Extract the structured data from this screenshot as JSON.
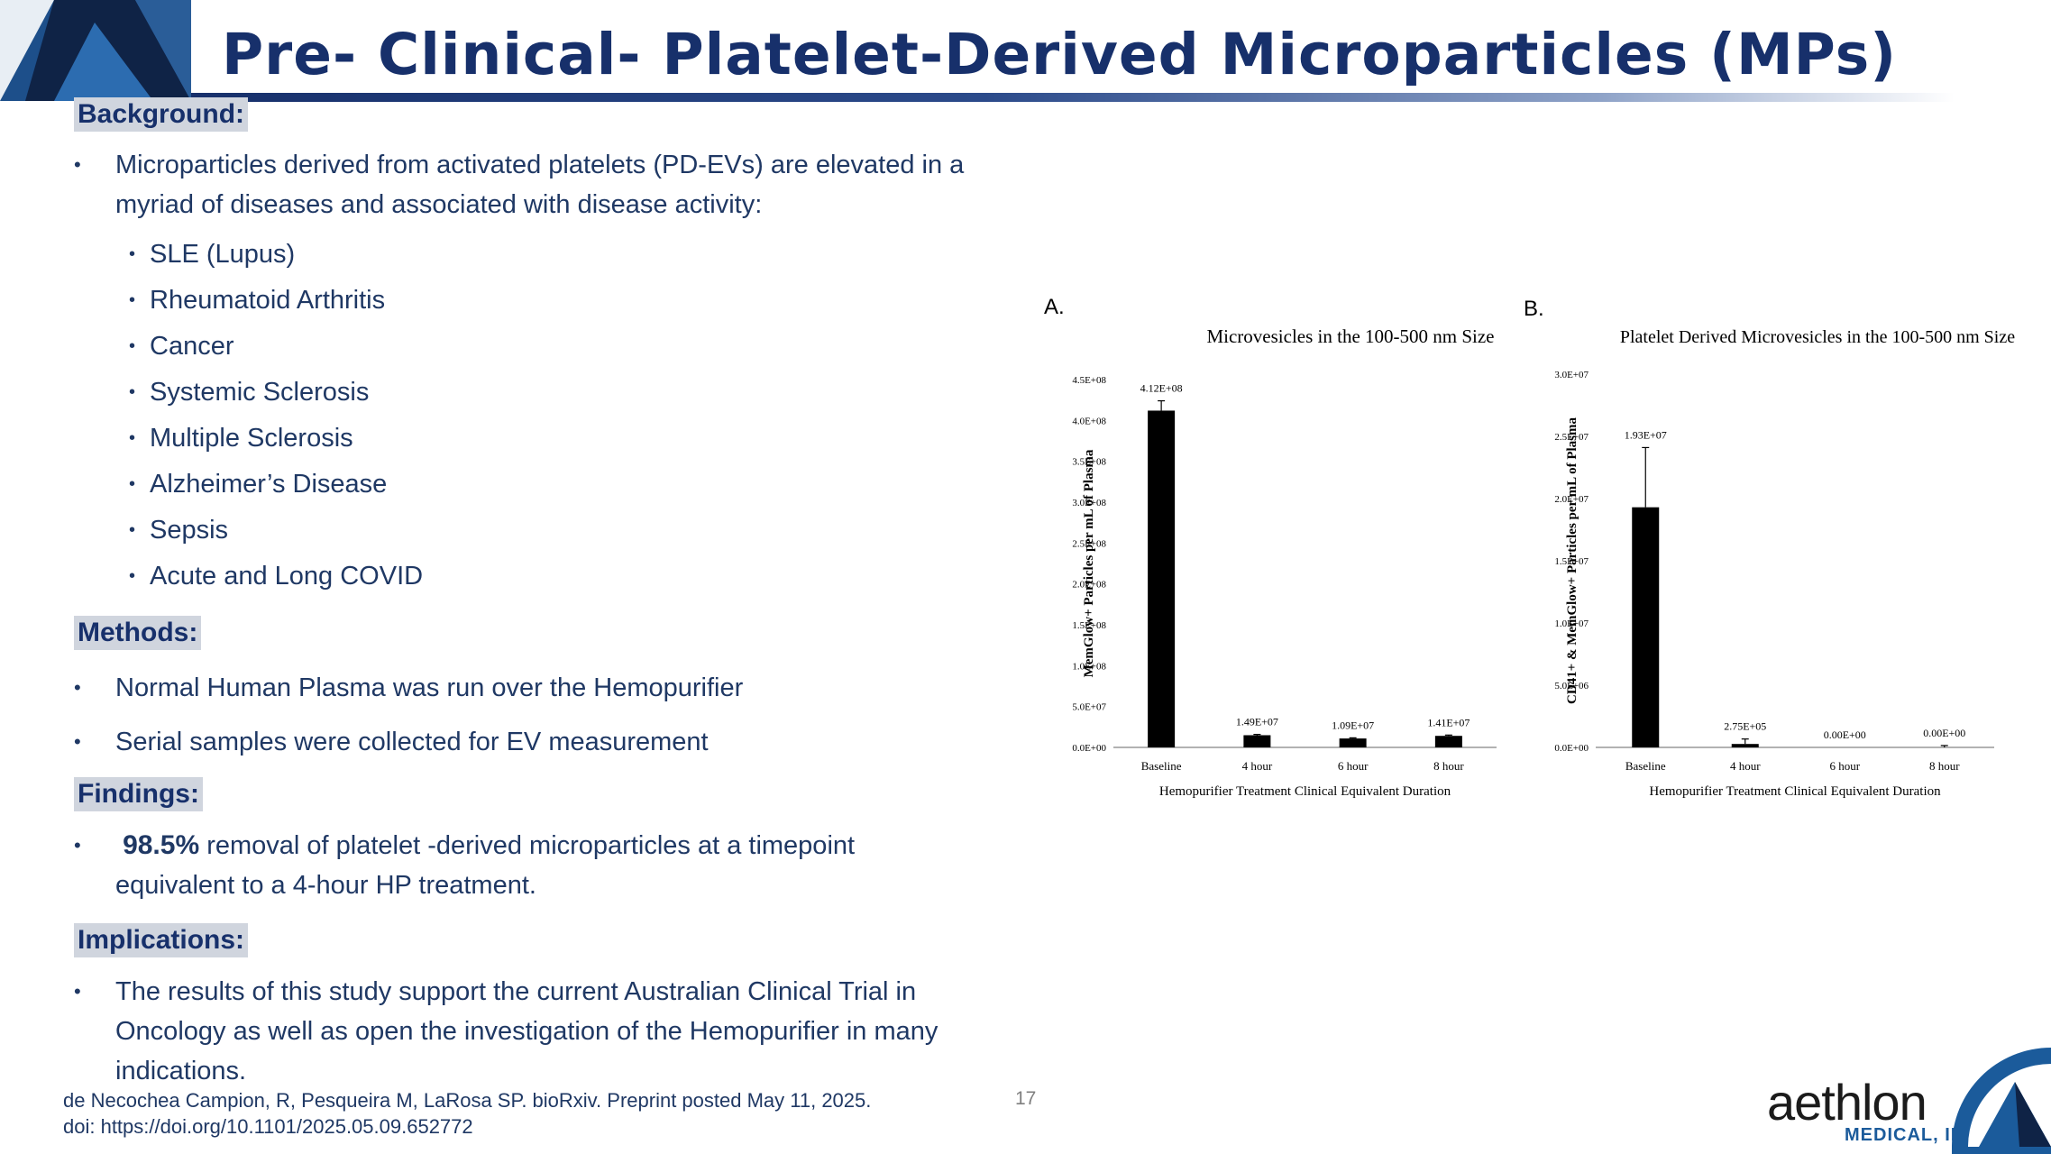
{
  "slide": {
    "title": "Pre- Clinical- Platelet-Derived Microparticles (MPs)",
    "page_number": "17"
  },
  "background": {
    "heading": "Background:",
    "bullet": "Microparticles derived from activated platelets (PD-EVs) are elevated in a myriad of diseases and associated with disease activity:",
    "diseases": [
      "SLE (Lupus)",
      "Rheumatoid Arthritis",
      "Cancer",
      "Systemic Sclerosis",
      "Multiple Sclerosis",
      "Alzheimer’s Disease",
      "Sepsis",
      "Acute and Long COVID"
    ]
  },
  "methods": {
    "heading": "Methods:",
    "bullets": [
      "Normal Human Plasma was run over the Hemopurifier",
      "Serial samples were collected for EV measurement"
    ]
  },
  "findings": {
    "heading": "Findings:",
    "highlight": "98.5%",
    "text": " removal of platelet -derived microparticles at a timepoint equivalent to a 4-hour HP treatment."
  },
  "implications": {
    "heading": "Implications:",
    "bullet": "The results of this study support the current Australian Clinical Trial in Oncology as well as open the investigation of the Hemopurifier in many indications."
  },
  "citation": {
    "line1": "de Necochea Campion, R, Pesqueira M, LaRosa SP. bioRxiv. Preprint posted May 11, 2025.",
    "line2": "doi:    https://doi.org/10.1101/2025.05.09.652772"
  },
  "brand": {
    "name": "aethlon",
    "subtitle": "MEDICAL, INC.",
    "primary_color": "#17306b",
    "accent_color": "#1b5b9b"
  },
  "chart_data": [
    {
      "panel_label": "A.",
      "type": "bar",
      "title": "Microvesicles in the 100-500 nm Size",
      "xlabel": "Hemopurifier Treatment Clinical Equivalent Duration",
      "ylabel": "MemGlow+ Particles per mL of Plasma",
      "categories": [
        "Baseline",
        "4 hour",
        "6 hour",
        "8 hour"
      ],
      "values": [
        412000000,
        14900000,
        10900000,
        14100000
      ],
      "value_labels": [
        "4.12E+08",
        "1.49E+07",
        "1.09E+07",
        "1.41E+07"
      ],
      "errors": [
        12000000,
        1000000,
        800000,
        1000000
      ],
      "ylim": [
        0,
        450000000
      ],
      "yticks": [
        0,
        50000000,
        100000000,
        150000000,
        200000000,
        250000000,
        300000000,
        350000000,
        400000000,
        450000000
      ],
      "ytick_labels": [
        "0.0E+00",
        "5.0E+07",
        "1.0E+08",
        "1.5E+08",
        "2.0E+08",
        "2.5E+08",
        "3.0E+08",
        "3.5E+08",
        "4.0E+08",
        "4.5E+08"
      ],
      "bar_color": "#000000",
      "grid": false
    },
    {
      "panel_label": "B.",
      "type": "bar",
      "title": "Platelet Derived Microvesicles in the 100-500 nm Size",
      "xlabel": "Hemopurifier Treatment Clinical Equivalent Duration",
      "ylabel": "CD41+ & MemGlow+ Particles per mL of Plasma",
      "categories": [
        "Baseline",
        "4 hour",
        "6 hour",
        "8 hour"
      ],
      "values": [
        19300000,
        275000,
        0,
        0
      ],
      "value_labels": [
        "1.93E+07",
        "2.75E+05",
        "0.00E+00",
        "0.00E+00"
      ],
      "errors": [
        4800000,
        400000,
        0,
        150000
      ],
      "ylim": [
        0,
        30000000
      ],
      "yticks": [
        0,
        5000000,
        10000000,
        15000000,
        20000000,
        25000000,
        30000000
      ],
      "ytick_labels": [
        "0.0E+00",
        "5.0E+06",
        "1.0E+07",
        "1.5E+07",
        "2.0E+07",
        "2.5E+07",
        "3.0E+07"
      ],
      "bar_color": "#000000",
      "grid": false
    }
  ]
}
